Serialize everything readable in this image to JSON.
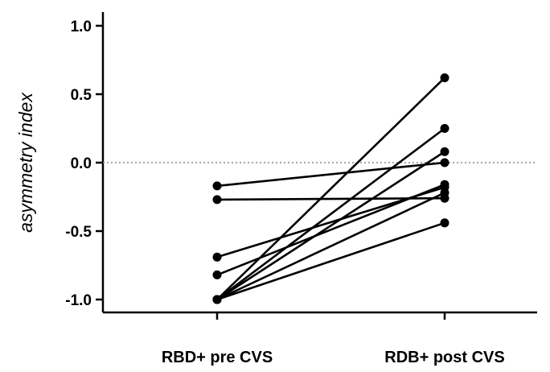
{
  "chart_data": {
    "type": "line",
    "categories": [
      "RBD+ pre CVS",
      "RDB+ post CVS"
    ],
    "ylabel": "asymmetry index",
    "ylim": [
      -1.0,
      1.0
    ],
    "yticks": [
      "1.0",
      "0.5",
      "0.0",
      "-0.5",
      "-1.0"
    ],
    "ytick_values": [
      1.0,
      0.5,
      0.0,
      -0.5,
      -1.0
    ],
    "reference_line": 0.0,
    "grid": false,
    "pairs": [
      {
        "pre": -0.17,
        "post": 0.0
      },
      {
        "pre": -0.27,
        "post": -0.26
      },
      {
        "pre": -0.69,
        "post": -0.18
      },
      {
        "pre": -0.82,
        "post": -0.16
      },
      {
        "pre": -1.0,
        "post": 0.62
      },
      {
        "pre": -1.0,
        "post": 0.25
      },
      {
        "pre": -1.0,
        "post": 0.08
      },
      {
        "pre": -1.0,
        "post": -0.22
      },
      {
        "pre": -1.0,
        "post": -0.44
      }
    ],
    "colors": {
      "line": "#000000",
      "marker": "#000000",
      "reference": "#888888"
    }
  }
}
